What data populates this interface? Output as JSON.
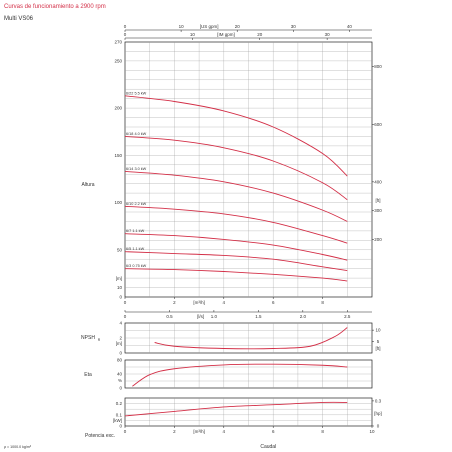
{
  "header": {
    "title": "Curvas de funcionamiento a 2900 rpm",
    "model": "Multi VS06"
  },
  "colors": {
    "curve": "#d32f47",
    "axis": "#222222",
    "grid": "#9a9a9a",
    "title": "#d32f47"
  },
  "chart_data": [
    {
      "type": "line",
      "ylabel": "Altura",
      "yunit_left": "[m]",
      "yunit_right": "[ft]",
      "ylim": [
        0,
        270
      ],
      "yticks": [
        0,
        10,
        50,
        100,
        150,
        200,
        250,
        270
      ],
      "yticks_right": [
        "200",
        "300",
        "400",
        "600",
        "800"
      ],
      "yticks_right_values_m": [
        61,
        91.4,
        121.9,
        182.9,
        243.8
      ],
      "xlim": [
        0,
        10
      ],
      "xticks": [
        "0",
        "2",
        "4",
        "6",
        "8"
      ],
      "xunit": "[m³/h]",
      "top_axes": [
        {
          "unit": "[US gpm]",
          "ticks": [
            "0",
            "10",
            "20",
            "30",
            "40"
          ],
          "per_m3h": 4.403
        },
        {
          "unit": "[IM gpm]",
          "ticks": [
            "0",
            "10",
            "20",
            "30"
          ],
          "per_m3h": 3.666
        }
      ],
      "bottom_axis2": {
        "unit": "[l/s]",
        "ticks": [
          "0",
          "0.5",
          "1.0",
          "1.5",
          "2.0",
          "2.5"
        ],
        "per_m3h": 0.2778
      },
      "series": [
        {
          "name": "6/22 5.5 kW",
          "x": [
            0,
            2,
            4,
            6,
            8,
            9
          ],
          "y": [
            213,
            207,
            197,
            180,
            152,
            128
          ]
        },
        {
          "name": "6/18 4.0 kW",
          "x": [
            0,
            2,
            4,
            6,
            8,
            9
          ],
          "y": [
            170,
            166,
            158,
            144,
            121,
            103
          ]
        },
        {
          "name": "6/14 3.0 kW",
          "x": [
            0,
            2,
            4,
            6,
            8,
            9
          ],
          "y": [
            133,
            129,
            122,
            110,
            92,
            80
          ]
        },
        {
          "name": "6/10 2.2 kW",
          "x": [
            0,
            2,
            4,
            6,
            8,
            9
          ],
          "y": [
            96,
            93,
            88,
            79,
            65,
            57
          ]
        },
        {
          "name": "6/7 1.1 kW",
          "x": [
            0,
            2,
            4,
            6,
            8,
            9
          ],
          "y": [
            67,
            65,
            61,
            55,
            45,
            39
          ]
        },
        {
          "name": "6/5 1.1 kW",
          "x": [
            0,
            2,
            4,
            6,
            8,
            9
          ],
          "y": [
            48,
            46,
            44,
            40,
            32,
            28
          ]
        },
        {
          "name": "6/3 0.75 kW",
          "x": [
            0,
            2,
            4,
            6,
            8,
            9
          ],
          "y": [
            30,
            29,
            27,
            24,
            20,
            17
          ]
        }
      ]
    },
    {
      "type": "line",
      "ylabel": "NPSH",
      "ylabel_sub": "R",
      "yunit_left": "[m]",
      "yunit_right": "[ft]",
      "ylim": [
        0,
        4
      ],
      "yticks": [
        0,
        2,
        4
      ],
      "yticks_right": [
        "5",
        "10"
      ],
      "yticks_right_values_m": [
        1.524,
        3.048
      ],
      "series": [
        {
          "name": "",
          "x": [
            1.2,
            2,
            4,
            6,
            7.5,
            8.5,
            9
          ],
          "y": [
            1.4,
            0.9,
            0.6,
            0.6,
            0.9,
            2.2,
            3.4
          ]
        }
      ]
    },
    {
      "type": "line",
      "ylabel": "Eta",
      "yunit_left": "%",
      "ylim": [
        0,
        80
      ],
      "yticks": [
        0,
        40,
        80
      ],
      "series": [
        {
          "name": "",
          "x": [
            0.3,
            1,
            2,
            4,
            6,
            8,
            9
          ],
          "y": [
            5,
            38,
            55,
            66,
            68,
            65,
            60
          ]
        }
      ]
    },
    {
      "type": "line",
      "ylabel": "Potencia exc.",
      "yunit_left": "[kW]",
      "yunit_right": "[hp]",
      "ylim": [
        0,
        0.25
      ],
      "yticks": [
        0,
        0.1,
        0.2
      ],
      "yticks_right": [
        "0",
        "0.3"
      ],
      "yticks_right_values_kw": [
        0,
        0.224
      ],
      "xlim": [
        0,
        10
      ],
      "xticks": [
        "0",
        "2",
        "4",
        "6",
        "8",
        "10"
      ],
      "xunit": "[m³/h]",
      "xlabel": "Caudal",
      "series": [
        {
          "name": "",
          "x": [
            0,
            2,
            4,
            6,
            8,
            9
          ],
          "y": [
            0.09,
            0.13,
            0.17,
            0.19,
            0.21,
            0.21
          ]
        }
      ]
    }
  ],
  "footnote": "ρ = 1000.0 kg/m³"
}
